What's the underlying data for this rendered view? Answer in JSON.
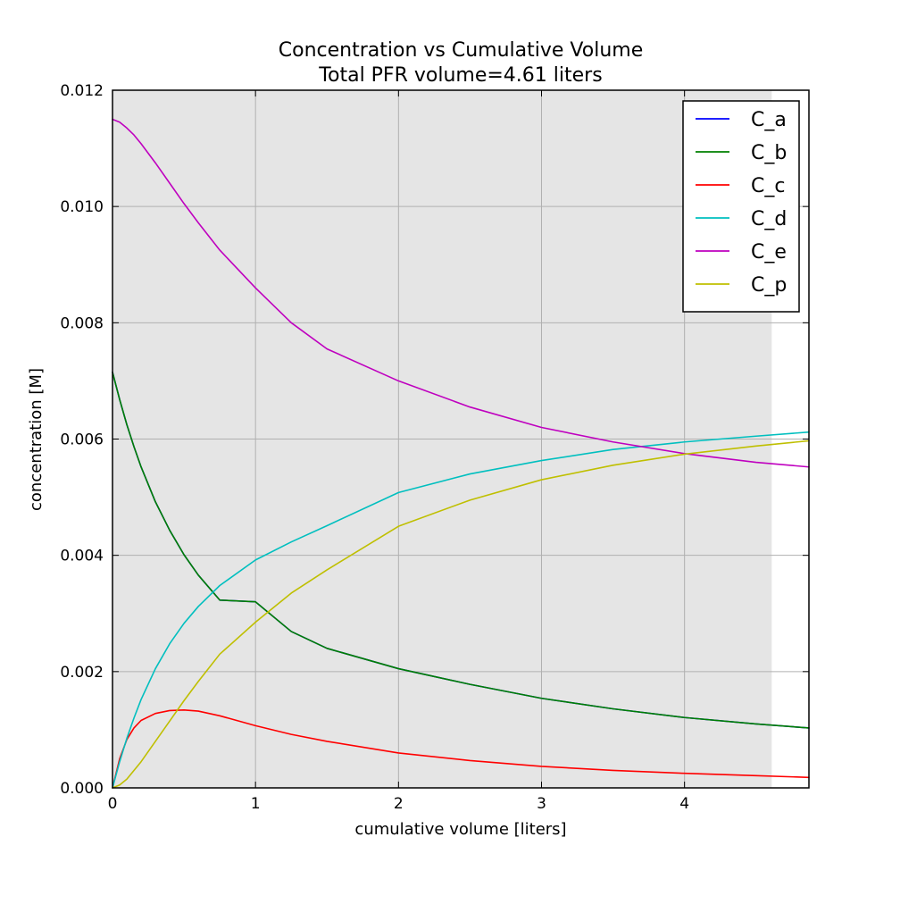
{
  "chart_data": {
    "type": "line",
    "title": "Concentration vs Cumulative Volume",
    "subtitle": "Total PFR volume=4.61 liters",
    "xlabel": "cumulative volume [liters]",
    "ylabel": "concentration [M]",
    "xlim": [
      0,
      4.87
    ],
    "ylim": [
      0,
      0.012
    ],
    "xticks": [
      0,
      1,
      2,
      3,
      4
    ],
    "xtick_labels": [
      "0",
      "1",
      "2",
      "3",
      "4"
    ],
    "yticks": [
      0,
      0.002,
      0.004,
      0.006,
      0.008,
      0.01,
      0.012
    ],
    "ytick_labels": [
      "0.000",
      "0.002",
      "0.004",
      "0.006",
      "0.008",
      "0.010",
      "0.012"
    ],
    "grid": true,
    "legend_position": "top-right",
    "shaded_region": {
      "x_start": 0,
      "x_end": 4.61,
      "color": "#e5e5e5"
    },
    "x": [
      0,
      0.05,
      0.1,
      0.15,
      0.2,
      0.3,
      0.4,
      0.5,
      0.6,
      0.75,
      1.0,
      1.25,
      1.5,
      2.0,
      2.5,
      3.0,
      3.5,
      4.0,
      4.5,
      4.87
    ],
    "series": [
      {
        "name": "C_a",
        "color": "#0000ff",
        "values": [
          0.00715,
          0.00668,
          0.00625,
          0.00587,
          0.00552,
          0.00492,
          0.00443,
          0.00401,
          0.00366,
          0.00323,
          0.0032,
          0.00269,
          0.0024,
          0.00205,
          0.00178,
          0.00154,
          0.00136,
          0.00121,
          0.0011,
          0.00103
        ]
      },
      {
        "name": "C_b",
        "color": "#008000",
        "values": [
          0.00715,
          0.00668,
          0.00625,
          0.00587,
          0.00552,
          0.00492,
          0.00443,
          0.00401,
          0.00366,
          0.00323,
          0.0032,
          0.00269,
          0.0024,
          0.00205,
          0.00178,
          0.00154,
          0.00136,
          0.00121,
          0.0011,
          0.00103
        ]
      },
      {
        "name": "C_c",
        "color": "#ff0000",
        "values": [
          0.0,
          0.0005,
          0.00083,
          0.00103,
          0.00116,
          0.00128,
          0.00133,
          0.00134,
          0.00132,
          0.00124,
          0.00107,
          0.00092,
          0.0008,
          0.0006,
          0.00047,
          0.00037,
          0.0003,
          0.00025,
          0.00021,
          0.00018
        ]
      },
      {
        "name": "C_d",
        "color": "#00bfbf",
        "values": [
          0.0,
          0.00045,
          0.00085,
          0.0012,
          0.00152,
          0.00205,
          0.00248,
          0.00283,
          0.00312,
          0.00348,
          0.00392,
          0.00423,
          0.00451,
          0.00508,
          0.0054,
          0.00563,
          0.00582,
          0.00595,
          0.00605,
          0.00612
        ]
      },
      {
        "name": "C_e",
        "color": "#bf00bf",
        "values": [
          0.0115,
          0.01145,
          0.01135,
          0.01123,
          0.01108,
          0.01075,
          0.0104,
          0.01005,
          0.00972,
          0.00925,
          0.0086,
          0.008,
          0.00755,
          0.007,
          0.00655,
          0.0062,
          0.00595,
          0.00575,
          0.0056,
          0.00552
        ]
      },
      {
        "name": "C_p",
        "color": "#bfbf00",
        "values": [
          0.0,
          5e-05,
          0.00015,
          0.0003,
          0.00045,
          0.0008,
          0.00115,
          0.0015,
          0.00183,
          0.0023,
          0.00285,
          0.00335,
          0.00375,
          0.0045,
          0.00495,
          0.0053,
          0.00555,
          0.00574,
          0.00588,
          0.00597
        ]
      }
    ]
  }
}
